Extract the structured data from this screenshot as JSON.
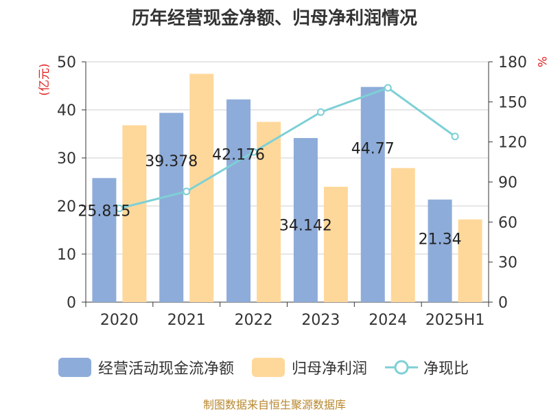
{
  "title": "历年经营现金净额、归母净利润情况",
  "source": "制图数据来自恒生聚源数据库",
  "colors": {
    "operating_cash": "#8eacd9",
    "net_profit": "#fed89a",
    "ratio": "#7dd0d6",
    "axis_unit": "#e02020"
  },
  "chart_data": {
    "type": "bar",
    "categories": [
      "2020",
      "2021",
      "2022",
      "2023",
      "2024",
      "2025H1"
    ],
    "series": [
      {
        "name": "经营活动现金流净额",
        "type": "bar",
        "axis": "left",
        "values": [
          25.815,
          39.378,
          42.176,
          34.142,
          44.77,
          21.34
        ]
      },
      {
        "name": "归母净利润",
        "type": "bar",
        "axis": "left",
        "values": [
          36.8,
          47.5,
          37.5,
          24.0,
          27.9,
          17.2
        ]
      },
      {
        "name": "净现比",
        "type": "line",
        "axis": "right",
        "values": [
          70.2,
          82.9,
          112.5,
          142.3,
          160.5,
          124.1
        ]
      }
    ],
    "data_labels": [
      "25.815",
      "39.378",
      "42.176",
      "34.142",
      "44.77",
      "21.34"
    ],
    "y_left": {
      "unit": "(亿元)",
      "ylim": [
        0,
        50
      ],
      "ticks": [
        "0",
        "10",
        "20",
        "30",
        "40",
        "50"
      ]
    },
    "y_right": {
      "unit": "%",
      "ylim": [
        0,
        180
      ],
      "ticks": [
        "0",
        "30",
        "60",
        "90",
        "120",
        "150",
        "180"
      ]
    },
    "grid": true,
    "legend_position": "bottom"
  }
}
